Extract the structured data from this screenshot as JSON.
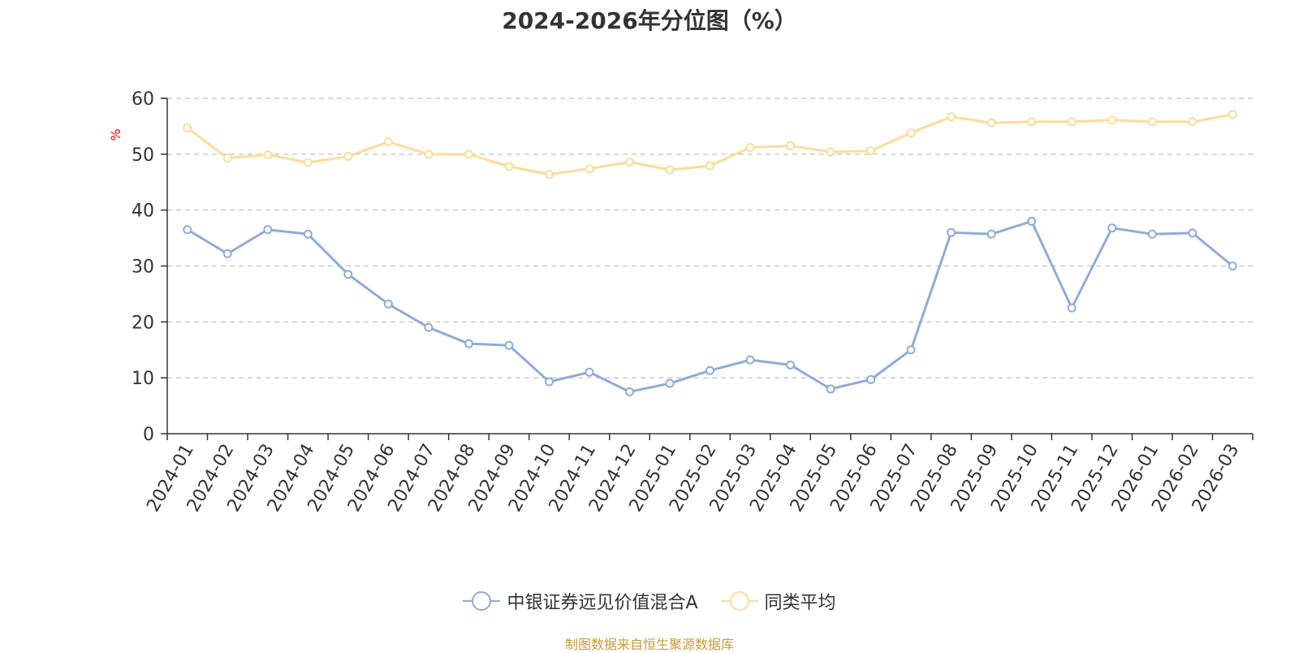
{
  "chart_data": {
    "type": "line",
    "title": "2024-2026年分位图（%）",
    "ylabel": "%",
    "xlabel": "",
    "ylim": [
      0,
      60
    ],
    "yticks": [
      0,
      10,
      20,
      30,
      40,
      50,
      60
    ],
    "grid": true,
    "legend_position": "bottom",
    "categories": [
      "2024-01",
      "2024-02",
      "2024-03",
      "2024-04",
      "2024-05",
      "2024-06",
      "2024-07",
      "2024-08",
      "2024-09",
      "2024-10",
      "2024-11",
      "2024-12",
      "2025-01",
      "2025-02",
      "2025-03",
      "2025-04",
      "2025-05",
      "2025-06",
      "2025-07",
      "2025-08",
      "2025-09",
      "2025-10",
      "2025-11",
      "2025-12",
      "2026-01",
      "2026-02",
      "2026-03"
    ],
    "series": [
      {
        "name": "中银证券远见价值混合A",
        "color": "#8eacd9",
        "values": [
          36.5,
          32.2,
          36.5,
          35.7,
          28.5,
          23.2,
          19.0,
          16.1,
          15.8,
          9.3,
          11.0,
          7.5,
          9.0,
          11.3,
          13.2,
          12.3,
          8.0,
          9.7,
          15.0,
          36.0,
          35.7,
          38.0,
          22.5,
          36.8,
          35.7,
          35.9,
          30.0
        ]
      },
      {
        "name": "同类平均",
        "color": "#fddb9a",
        "values": [
          54.7,
          49.3,
          49.9,
          48.5,
          49.6,
          52.2,
          50.0,
          50.0,
          47.8,
          46.4,
          47.4,
          48.6,
          47.2,
          47.9,
          51.2,
          51.5,
          50.4,
          50.6,
          53.8,
          56.7,
          55.6,
          55.8,
          55.8,
          56.1,
          55.8,
          55.8,
          57.1
        ]
      }
    ]
  },
  "footer": {
    "source": "制图数据来自恒生聚源数据库"
  }
}
